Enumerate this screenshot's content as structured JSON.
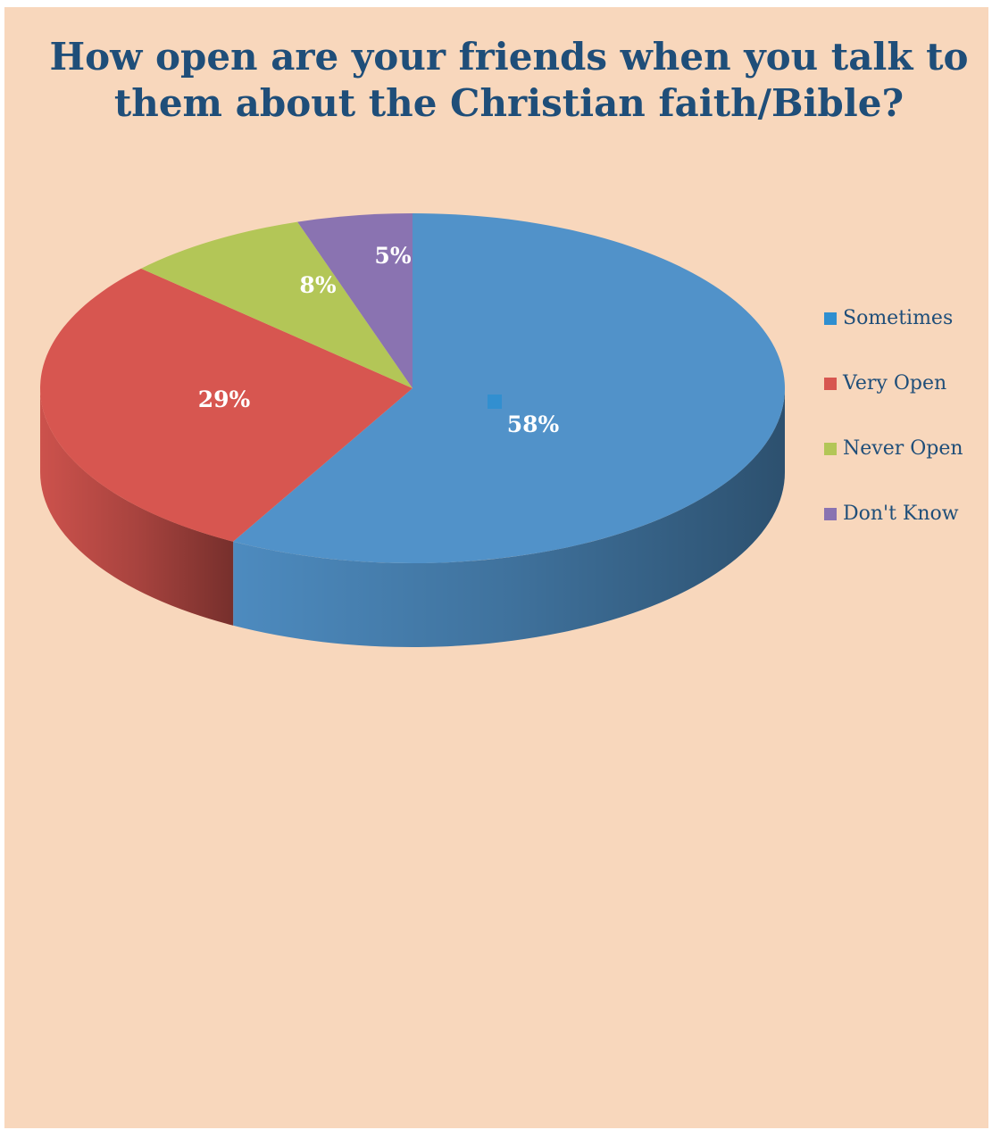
{
  "chart_data": {
    "type": "pie",
    "title": "How open are your friends when you talk to them about the Christian faith/Bible?",
    "categories": [
      "Sometimes",
      "Very Open",
      "Never Open",
      "Don't Know"
    ],
    "values": [
      58,
      29,
      8,
      5
    ],
    "data_labels": [
      "58%",
      "29%",
      "8%",
      "5%"
    ],
    "colors": [
      "#5192c9",
      "#d75650",
      "#b3c657",
      "#8a73b1"
    ],
    "style": "3d",
    "legend_position": "right"
  }
}
